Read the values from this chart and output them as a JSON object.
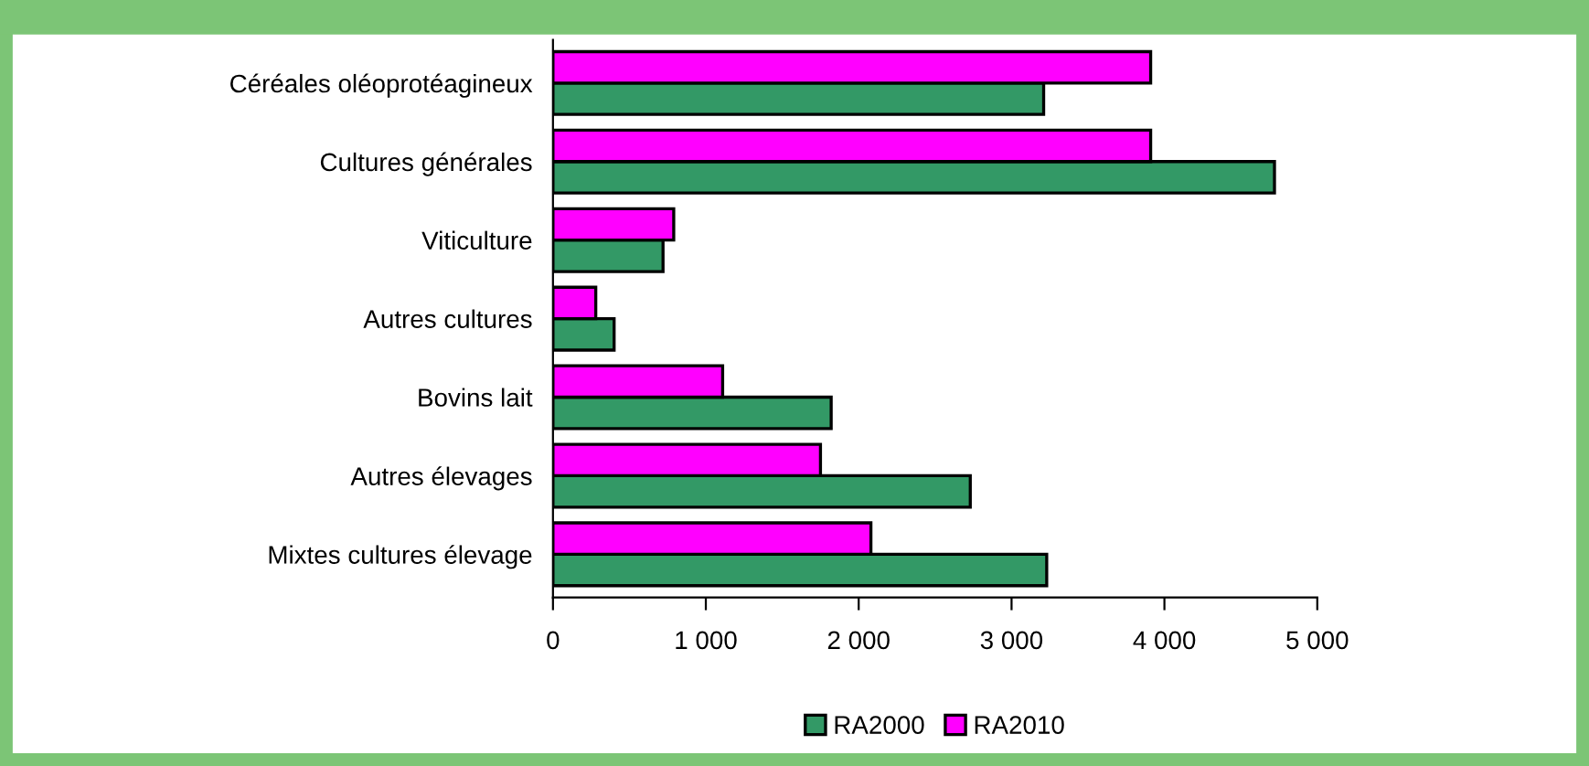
{
  "chart_data": {
    "type": "bar",
    "orientation": "horizontal",
    "categories": [
      "Céréales oléoprotéagineux",
      "Cultures générales",
      "Viticulture",
      "Autres cultures",
      "Bovins lait",
      "Autres élevages",
      "Mixtes cultures élevage"
    ],
    "series": [
      {
        "name": "RA2000",
        "color": "#339966",
        "values": [
          3210,
          4720,
          720,
          400,
          1820,
          2730,
          3230
        ]
      },
      {
        "name": "RA2010",
        "color": "#ff00ff",
        "values": [
          3910,
          3910,
          790,
          280,
          1110,
          1750,
          2080
        ]
      }
    ],
    "xlim": [
      0,
      5000
    ],
    "xticks": [
      {
        "value": 0,
        "label": "0"
      },
      {
        "value": 1000,
        "label": "1 000"
      },
      {
        "value": 2000,
        "label": "2 000"
      },
      {
        "value": 3000,
        "label": "3 000"
      },
      {
        "value": 4000,
        "label": "4 000"
      },
      {
        "value": 5000,
        "label": "5 000"
      }
    ],
    "grid": false,
    "legend": "bottom"
  }
}
